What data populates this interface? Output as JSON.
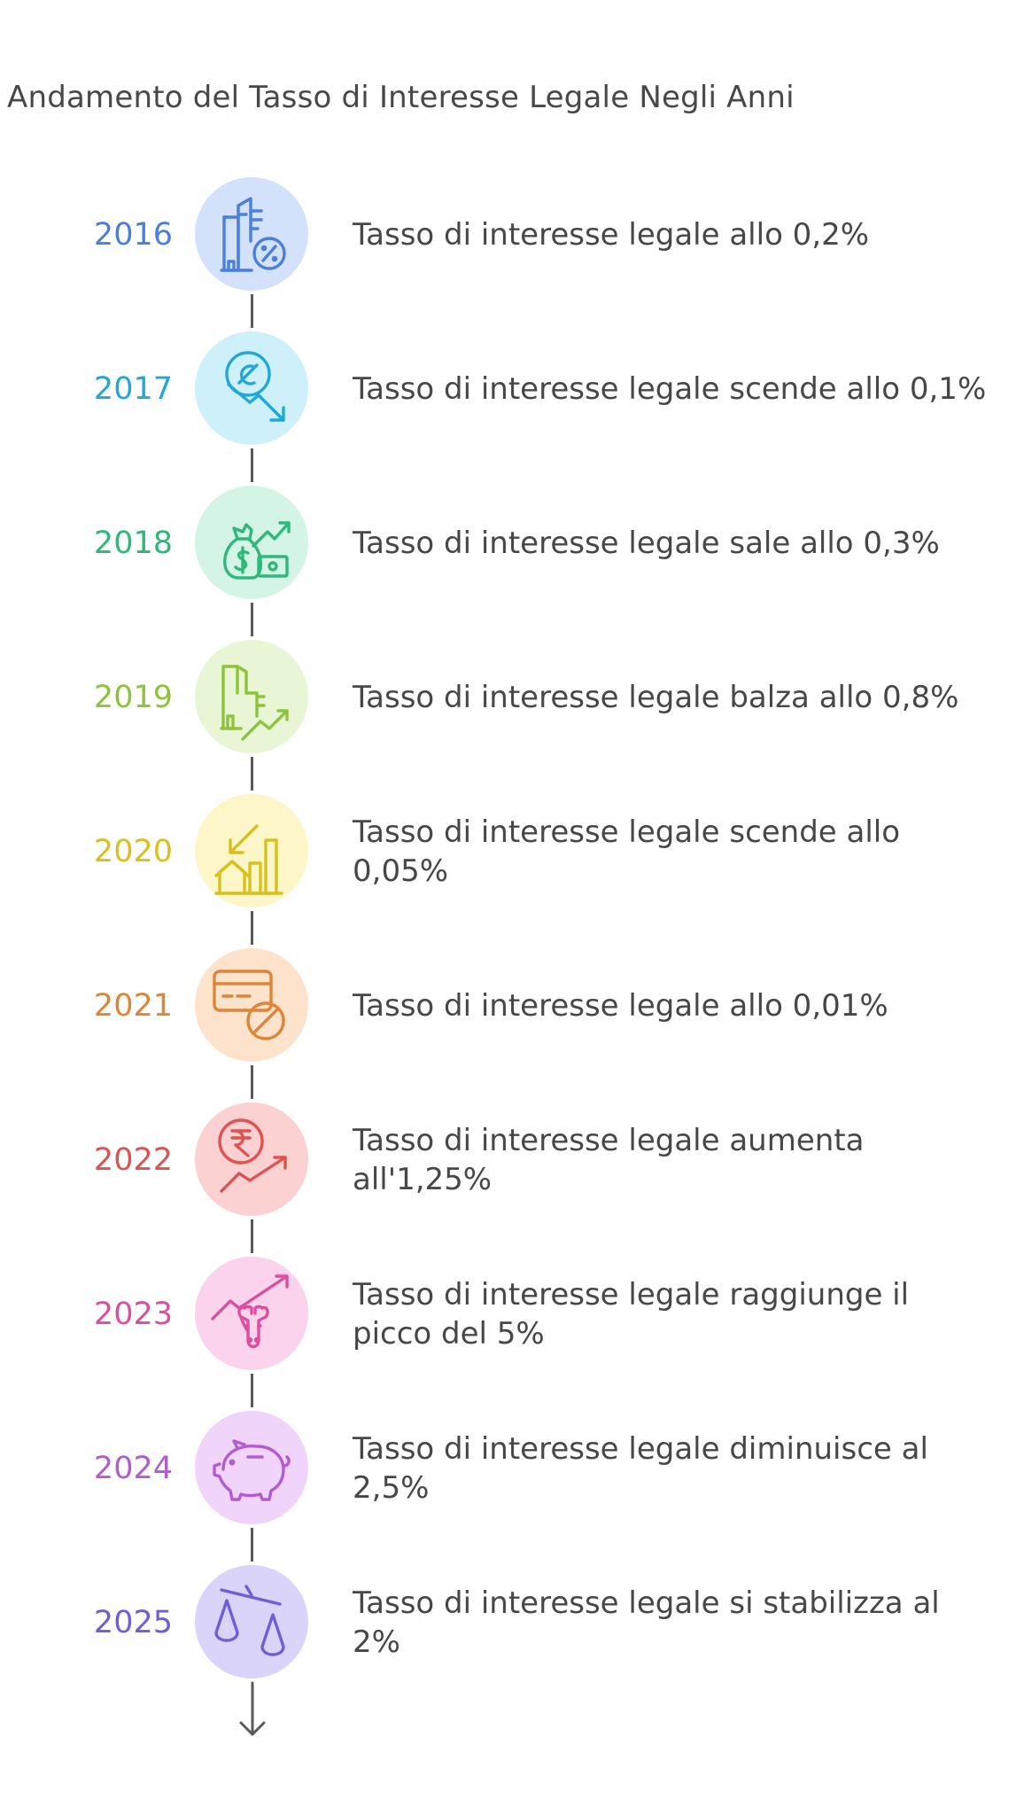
{
  "title": "Andamento del Tasso di Interesse Legale Negli Anni",
  "timeline": [
    {
      "year": "2016",
      "text": "Tasso di interesse legale allo 0,2%",
      "color": "#4a7fdc",
      "bg": "#d3e1fb",
      "icon": "building-percent-icon"
    },
    {
      "year": "2017",
      "text": "Tasso di interesse legale scende allo 0,1%",
      "color": "#21a8d6",
      "bg": "#cdf0fb",
      "icon": "coin-trend-down-icon"
    },
    {
      "year": "2018",
      "text": "Tasso di interesse legale sale allo 0,3%",
      "color": "#2fb87a",
      "bg": "#d4f5e6",
      "icon": "money-bag-trend-up-icon"
    },
    {
      "year": "2019",
      "text": "Tasso di interesse legale balza allo 0,8%",
      "color": "#8cc43a",
      "bg": "#e9f6d6",
      "icon": "buildings-trend-up-icon"
    },
    {
      "year": "2020",
      "text": "Tasso di interesse legale scende allo 0,05%",
      "color": "#d8c11c",
      "bg": "#fdf6c9",
      "icon": "house-chart-down-icon"
    },
    {
      "year": "2021",
      "text": "Tasso di interesse legale allo 0,01%",
      "color": "#dd8638",
      "bg": "#fde3cc",
      "icon": "credit-card-blocked-icon"
    },
    {
      "year": "2022",
      "text": "Tasso di interesse legale aumenta all'1,25%",
      "color": "#de5351",
      "bg": "#fcd1d1",
      "icon": "rupee-trend-up-icon"
    },
    {
      "year": "2023",
      "text": "Tasso di interesse legale raggiunge il picco del 5%",
      "color": "#dc4f9e",
      "bg": "#fcd3ec",
      "icon": "bull-trend-up-icon"
    },
    {
      "year": "2024",
      "text": "Tasso di interesse legale diminuisce al 2,5%",
      "color": "#b25ccf",
      "bg": "#f0d4fa",
      "icon": "piggy-bank-icon"
    },
    {
      "year": "2025",
      "text": "Tasso di interesse legale si stabilizza al 2%",
      "color": "#6e5ed8",
      "bg": "#dad4fb",
      "icon": "balance-scale-icon"
    }
  ]
}
